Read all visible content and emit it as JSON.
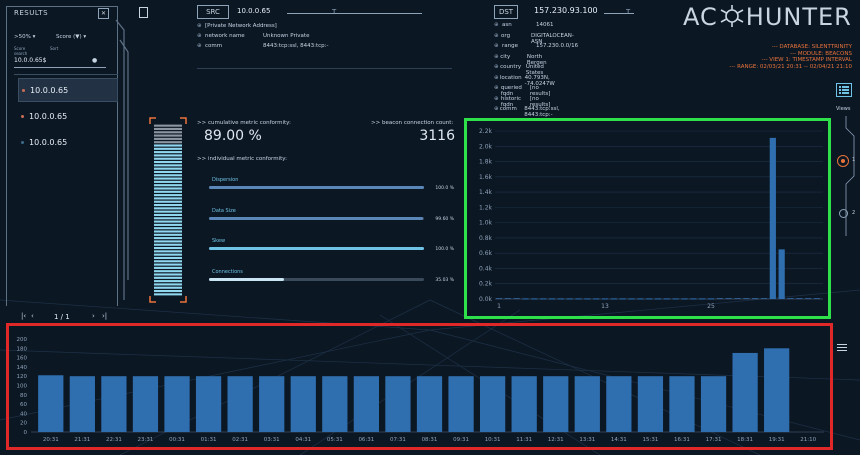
{
  "results": {
    "title": "RESULTS",
    "filter_value": ">50%",
    "sort_label": "Score (▼)",
    "score_caption": "Score",
    "sort_caption": "Sort",
    "search_caption": "search",
    "search_value": "10.0.0.65$",
    "items": [
      "10.0.0.65",
      "10.0.0.65",
      "10.0.0.65"
    ],
    "pager": "1 / 1"
  },
  "src": {
    "label": "SRC",
    "ip": "10.0.0.65",
    "rows": [
      {
        "key": "",
        "value": "[Private Network Address]"
      },
      {
        "key": "network name",
        "value": "Unknown Private"
      },
      {
        "key": "comm",
        "value": "8443:tcp:ssl, 8443:tcp:-"
      }
    ]
  },
  "dst": {
    "label": "DST",
    "ip": "157.230.93.100",
    "rows": [
      {
        "key": "asn",
        "value": "14061"
      },
      {
        "key": "org",
        "value": "DIGITALOCEAN-ASN"
      },
      {
        "key": "range",
        "value": "157.230.0.0/16"
      },
      {
        "key": "city",
        "value": "North Bergen"
      },
      {
        "key": "country",
        "value": "United States"
      },
      {
        "key": "location",
        "value": "40.793N, -74.0247W"
      },
      {
        "key": "queried fqdn",
        "value": "[no results]"
      },
      {
        "key": "historic fqdn",
        "value": "[no results]"
      },
      {
        "key": "comm",
        "value": "8443:tcp:ssl, 8443:tcp:-"
      }
    ]
  },
  "brand": {
    "name_left": "AC",
    "name_right": "HUNTER",
    "lines": [
      "--- DATABASE: SILENTTRINITY",
      "--- MODULE: BEACONS",
      "--- VIEW 1: TIMESTAMP INTERVAL",
      "--- RANGE: 02/03/21 20:31 -- 02/04/21 21:10"
    ],
    "views_label": "Views",
    "view_numbers": [
      "1",
      "2"
    ]
  },
  "metrics": {
    "cumulative_label": ">> cumulative metric conformity:",
    "cumulative_value": "89.00 %",
    "beacon_label": ">> beacon connection count:",
    "beacon_value": "3116",
    "individual_label": ">> individual metric conformity:",
    "conformity_fraction": 0.89,
    "items": [
      {
        "name": "Dispersion",
        "pct": "100.0 %",
        "fraction": 1.0
      },
      {
        "name": "Data Size",
        "pct": "99.60 %",
        "fraction": 0.996
      },
      {
        "name": "Skew",
        "pct": "100.0 %",
        "fraction": 1.0
      },
      {
        "name": "Connections",
        "pct": "35.03 %",
        "fraction": 0.3503
      }
    ]
  },
  "chart_data": [
    {
      "type": "bar",
      "title": "",
      "ylim": [
        0,
        2200
      ],
      "yticks": [
        "0.0k",
        "0.2k",
        "0.4k",
        "0.6k",
        "0.8k",
        "1.0k",
        "1.2k",
        "1.4k",
        "1.6k",
        "1.8k",
        "2.0k",
        "2.2k"
      ],
      "x_tick_labels": [
        {
          "x": 1,
          "label": "1"
        },
        {
          "x": 13,
          "label": "13"
        },
        {
          "x": 25,
          "label": "25"
        }
      ],
      "x_range": [
        1,
        37
      ],
      "x": [
        1,
        2,
        3,
        4,
        5,
        6,
        7,
        8,
        9,
        10,
        11,
        12,
        13,
        14,
        15,
        16,
        17,
        18,
        19,
        20,
        21,
        22,
        23,
        24,
        25,
        26,
        27,
        28,
        29,
        30,
        31,
        32,
        33,
        34,
        35,
        36,
        37
      ],
      "values": [
        0,
        0,
        0,
        8,
        8,
        8,
        8,
        8,
        8,
        8,
        8,
        8,
        8,
        8,
        8,
        8,
        8,
        8,
        8,
        8,
        8,
        8,
        8,
        8,
        8,
        0,
        0,
        0,
        0,
        0,
        0,
        2110,
        650,
        0,
        0,
        0,
        0
      ]
    },
    {
      "type": "bar",
      "title": "",
      "ylim": [
        0,
        200
      ],
      "yticks": [
        "0",
        "20",
        "40",
        "60",
        "80",
        "100",
        "120",
        "140",
        "160",
        "180",
        "200"
      ],
      "categories": [
        "20:31",
        "21:31",
        "22:31",
        "23:31",
        "00:31",
        "01:31",
        "02:31",
        "03:31",
        "04:31",
        "05:31",
        "06:31",
        "07:31",
        "08:31",
        "09:31",
        "10:31",
        "11:31",
        "12:31",
        "13:31",
        "14:31",
        "15:31",
        "16:31",
        "17:31",
        "18:31",
        "19:31"
      ],
      "extra_tick": "21:10",
      "values": [
        122,
        120,
        120,
        120,
        120,
        120,
        120,
        120,
        120,
        120,
        120,
        120,
        120,
        120,
        120,
        120,
        120,
        120,
        120,
        120,
        120,
        120,
        170,
        180
      ]
    }
  ]
}
